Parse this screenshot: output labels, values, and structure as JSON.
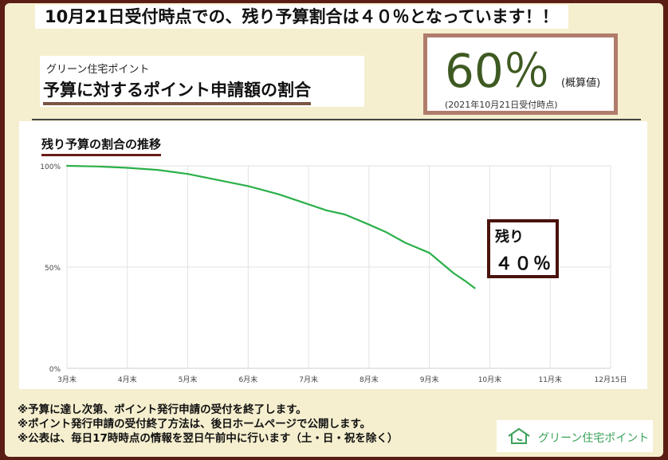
{
  "banner": "10月21日受付時点での、残り予算割合は４０％となっています！！",
  "header": {
    "subtitle": "グリーン住宅ポイント",
    "title": "予算に対するポイント申請額の割合"
  },
  "summary": {
    "value": "60％",
    "unit": "(概算値)",
    "note": "(2021年10月21日受付時点)"
  },
  "chart_section_title": "残り予算の割合の推移",
  "callout": {
    "line1": "残り",
    "line2": "４０％"
  },
  "notes": [
    "※予算に達し次第、ポイント発行申請の受付を終了します。",
    "※ポイント発行申請の受付終了方法は、後日ホームページで公開します。",
    "※公表は、毎日17時時点の情報を翌日午前中に行います（土・日・祝を除く）"
  ],
  "logo_text": "グリーン住宅ポイント",
  "colors": {
    "line": "#2bb04a",
    "grid": "#e2e2e2",
    "accent": "#6a1e16"
  },
  "chart_data": {
    "type": "line",
    "title": "残り予算の割合の推移",
    "xlabel": "",
    "ylabel": "",
    "categories": [
      "3月末",
      "4月末",
      "5月末",
      "6月末",
      "7月末",
      "8月末",
      "9月末",
      "10月末",
      "11月末",
      "12月15日"
    ],
    "y_ticks": [
      "0%",
      "50%",
      "100%"
    ],
    "ylim": [
      0,
      100
    ],
    "grid": true,
    "series": [
      {
        "x": [
          0,
          0.5,
          1,
          1.5,
          2,
          2.5,
          3,
          3.5,
          4,
          4.3,
          4.6,
          5,
          5.3,
          5.6,
          6,
          6.2,
          6.4,
          6.6,
          6.75
        ],
        "values": [
          100,
          99.7,
          99,
          98,
          96,
          93,
          90,
          86,
          81,
          78,
          76,
          71,
          67,
          62,
          57,
          52,
          47,
          43,
          39.6
        ]
      }
    ]
  }
}
